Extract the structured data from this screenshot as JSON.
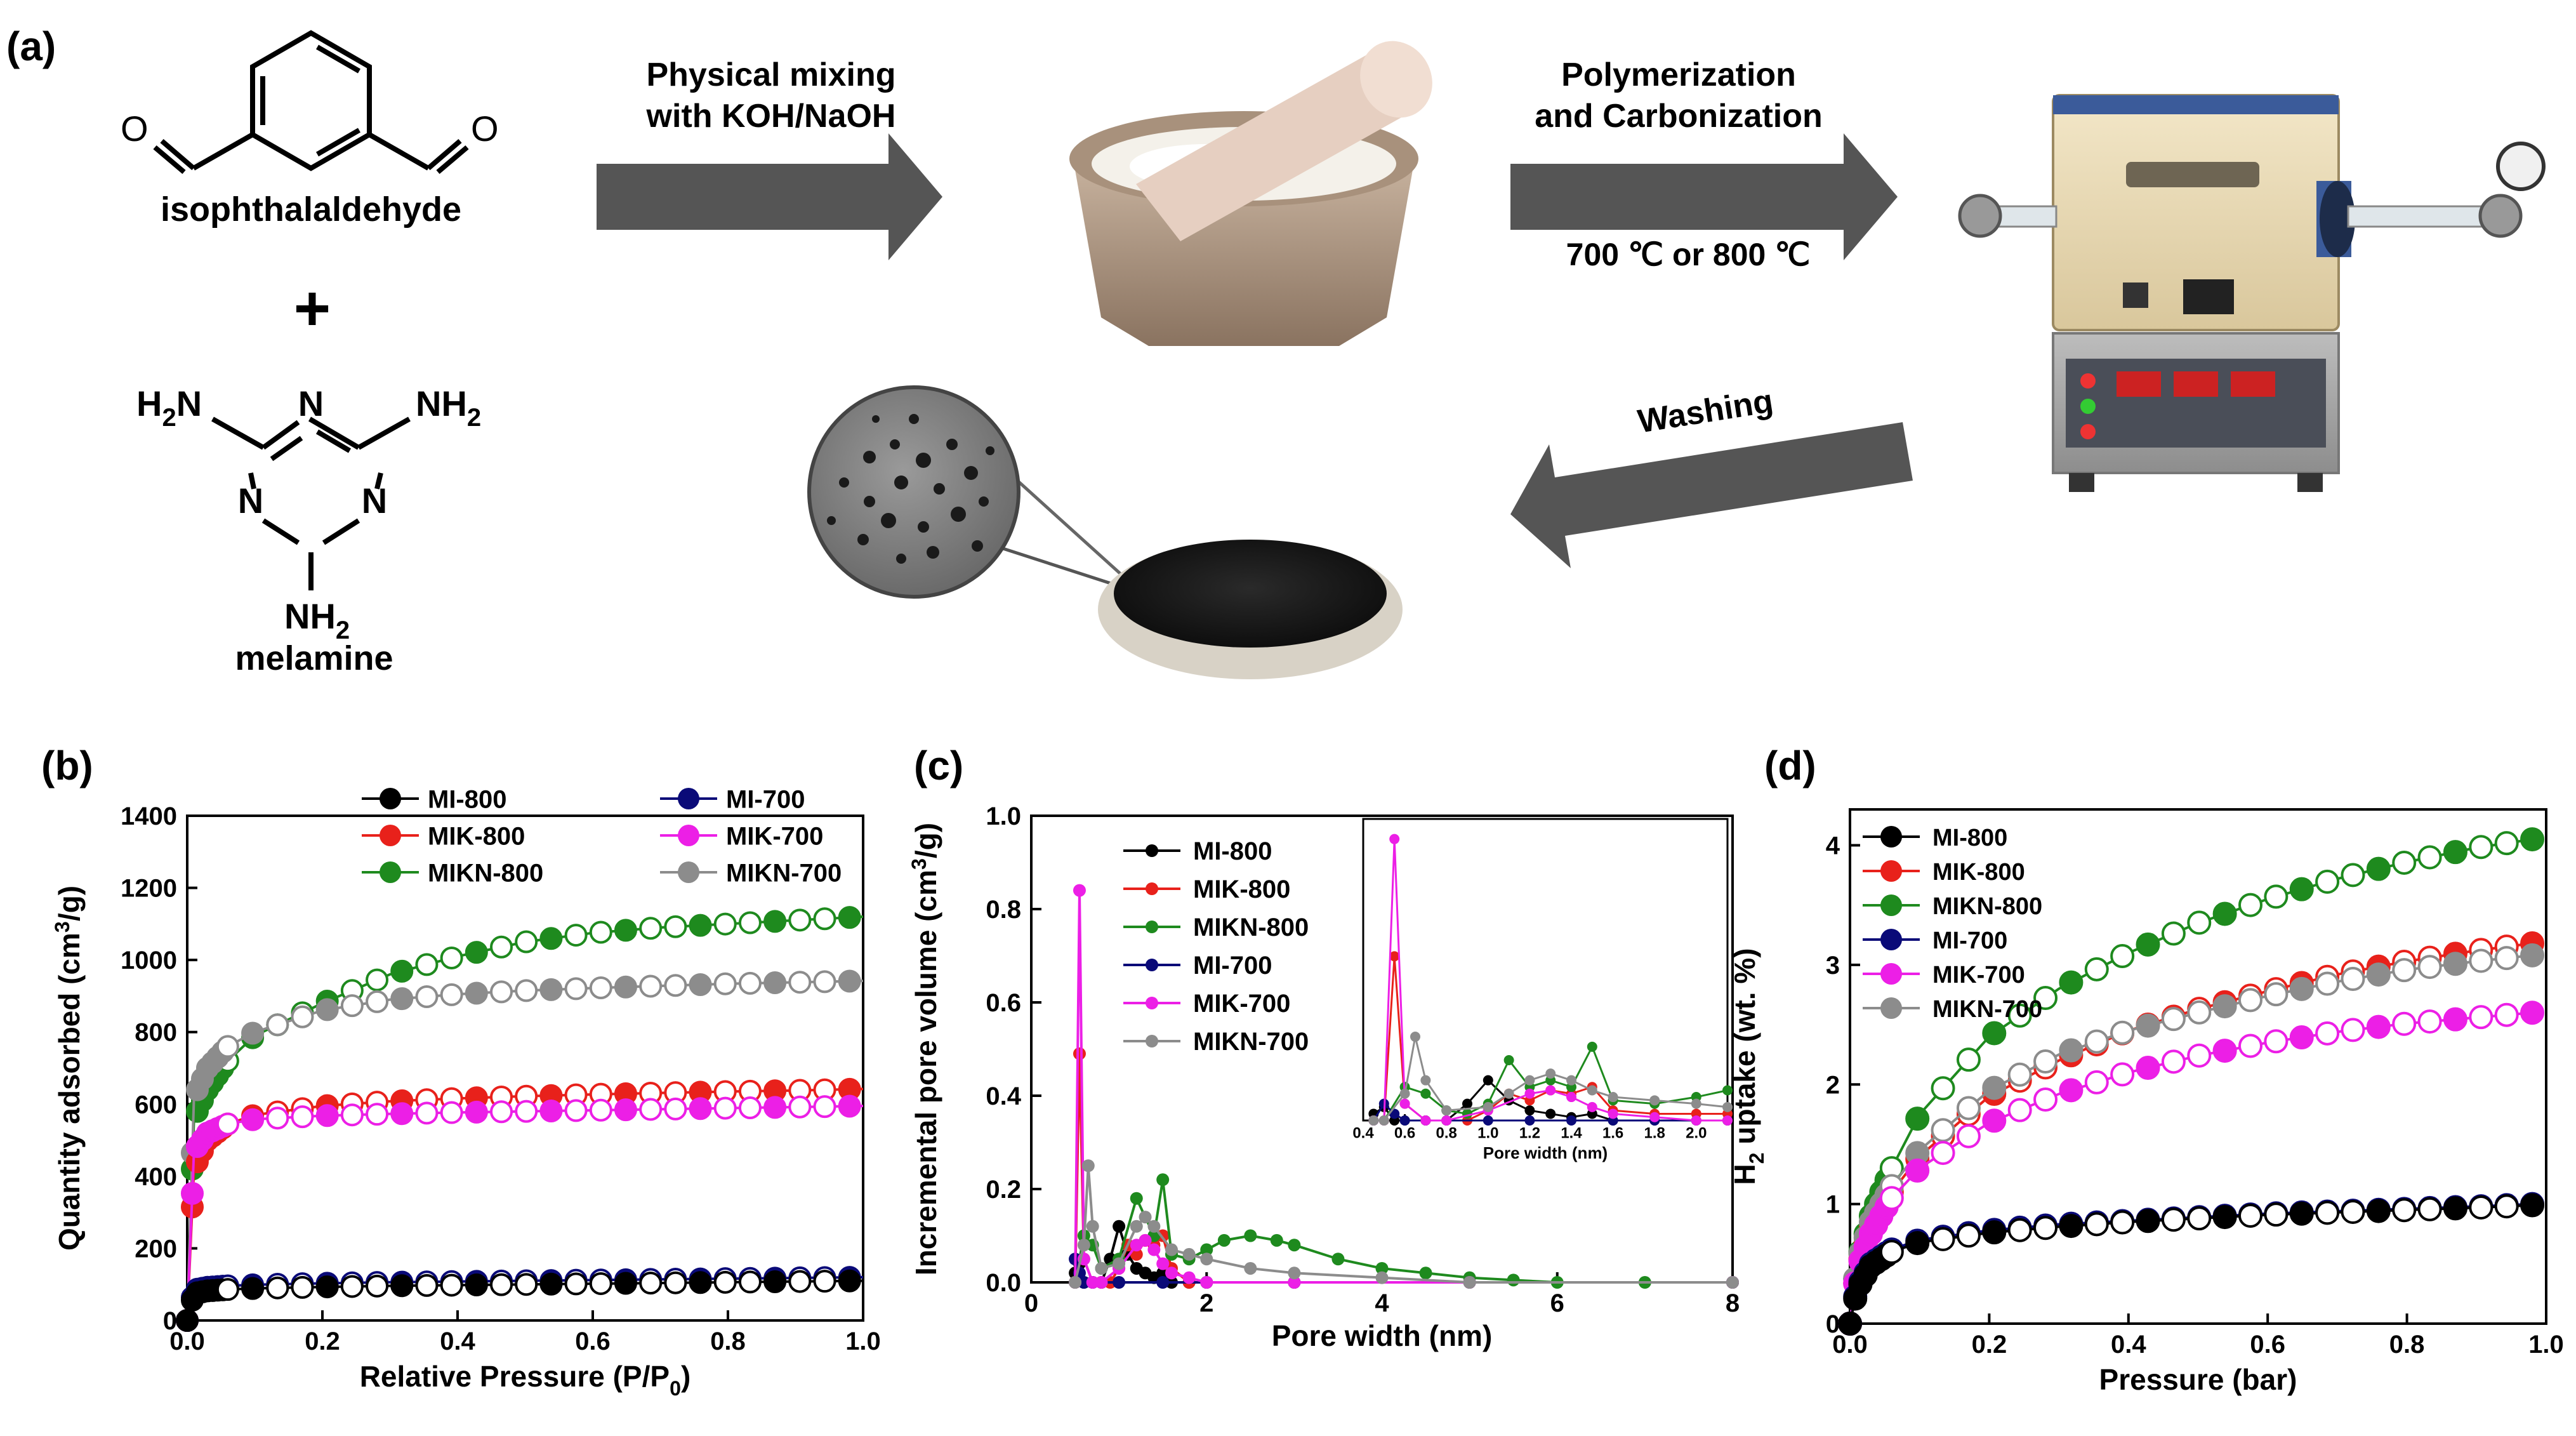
{
  "panel_a": {
    "label": "(a)",
    "molecule1_name": "isophthalaldehyde",
    "atom_o": "O",
    "plus": "+",
    "molecule2_name": "melamine",
    "h2n": "H",
    "h2n_sub": "2",
    "h2n_n": "N",
    "nh2": "NH",
    "nh2_sub": "2",
    "ring_n": "N",
    "arrow1_line1": "Physical mixing",
    "arrow1_line2": "with KOH/NaOH",
    "arrow2_line1": "Polymerization",
    "arrow2_line2": "and Carbonization",
    "arrow2_temp": "700 ℃ or 800 ℃",
    "arrow3_label": "Washing"
  },
  "panel_b": {
    "label": "(b)",
    "legend": [
      "MI-800",
      "MIK-800",
      "MIKN-800",
      "MI-700",
      "MIK-700",
      "MIKN-700"
    ]
  },
  "panel_c": {
    "label": "(c)",
    "legend": [
      "MI-800",
      "MIK-800",
      "MIKN-800",
      "MI-700",
      "MIK-700",
      "MIKN-700"
    ]
  },
  "panel_d": {
    "label": "(d)",
    "legend": [
      "MI-800",
      "MIK-800",
      "MIKN-800",
      "MI-700",
      "MIK-700",
      "MIKN-700"
    ]
  },
  "colors": {
    "MI-800": "#000000",
    "MIK-800": "#e8211b",
    "MIKN-800": "#1e8a1e",
    "MI-700": "#0a0a78",
    "MIK-700": "#ec1fe6",
    "MIKN-700": "#8c8c8c",
    "arrow": "#555555"
  },
  "chart_data": [
    {
      "type": "scatter",
      "panel": "b",
      "title": "",
      "xlabel": "Relative Pressure (P/P0)",
      "ylabel": "Quantity adsorbed (cm3/g)",
      "xlim": [
        0.0,
        1.0
      ],
      "ylim": [
        0,
        1400
      ],
      "xticks": [
        "0.0",
        "0.2",
        "0.4",
        "0.6",
        "0.8",
        "1.0"
      ],
      "yticks": [
        "0",
        "200",
        "400",
        "600",
        "800",
        "1000",
        "1200",
        "1400"
      ],
      "legend_position": "top-right",
      "series": [
        {
          "name": "MIKN-800",
          "x": [
            0.0,
            0.01,
            0.03,
            0.06,
            0.1,
            0.2,
            0.3,
            0.4,
            0.5,
            0.6,
            0.7,
            0.8,
            0.9,
            1.0
          ],
          "values": [
            0,
            560,
            640,
            720,
            790,
            880,
            960,
            1010,
            1050,
            1075,
            1090,
            1100,
            1110,
            1120
          ]
        },
        {
          "name": "MIKN-700",
          "x": [
            0.0,
            0.01,
            0.03,
            0.06,
            0.1,
            0.2,
            0.3,
            0.4,
            0.5,
            0.6,
            0.7,
            0.8,
            0.9,
            1.0
          ],
          "values": [
            0,
            620,
            700,
            760,
            800,
            860,
            890,
            905,
            915,
            922,
            928,
            934,
            938,
            942
          ]
        },
        {
          "name": "MIK-800",
          "x": [
            0.0,
            0.01,
            0.03,
            0.06,
            0.1,
            0.2,
            0.3,
            0.4,
            0.5,
            0.6,
            0.7,
            0.8,
            0.9,
            1.0
          ],
          "values": [
            0,
            420,
            500,
            545,
            570,
            595,
            608,
            616,
            622,
            627,
            631,
            635,
            638,
            642
          ]
        },
        {
          "name": "MIK-700",
          "x": [
            0.0,
            0.01,
            0.03,
            0.06,
            0.1,
            0.2,
            0.3,
            0.4,
            0.5,
            0.6,
            0.7,
            0.8,
            0.9,
            1.0
          ],
          "values": [
            0,
            470,
            520,
            545,
            558,
            568,
            573,
            577,
            580,
            583,
            586,
            589,
            592,
            595
          ]
        },
        {
          "name": "MI-700",
          "x": [
            0.0,
            0.01,
            0.03,
            0.06,
            0.1,
            0.2,
            0.3,
            0.4,
            0.5,
            0.6,
            0.7,
            0.8,
            0.9,
            1.0
          ],
          "values": [
            0,
            85,
            92,
            96,
            99,
            103,
            106,
            108,
            110,
            112,
            114,
            116,
            118,
            120
          ]
        },
        {
          "name": "MI-800",
          "x": [
            0.0,
            0.01,
            0.03,
            0.06,
            0.1,
            0.2,
            0.3,
            0.4,
            0.5,
            0.6,
            0.7,
            0.8,
            0.9,
            1.0
          ],
          "values": [
            0,
            75,
            82,
            86,
            89,
            93,
            96,
            98,
            100,
            102,
            104,
            106,
            108,
            110
          ]
        }
      ]
    },
    {
      "type": "line",
      "panel": "c",
      "title": "",
      "xlabel": "Pore width (nm)",
      "ylabel": "Incremental pore volume (cm3/g)",
      "xlim": [
        0,
        8
      ],
      "ylim": [
        0.0,
        1.0
      ],
      "xticks": [
        "0",
        "2",
        "4",
        "6",
        "8"
      ],
      "yticks": [
        "0.0",
        "0.2",
        "0.4",
        "0.6",
        "0.8",
        "1.0"
      ],
      "legend_position": "top-left",
      "series": [
        {
          "name": "MI-800",
          "x": [
            0.5,
            0.55,
            0.6,
            0.7,
            0.8,
            0.9,
            1.0,
            1.1,
            1.2,
            1.3,
            1.4,
            1.5,
            1.6,
            1.8,
            2.0,
            3.0,
            5.0,
            8.0
          ],
          "values": [
            0.02,
            0.04,
            0.0,
            0.0,
            0.0,
            0.05,
            0.12,
            0.06,
            0.03,
            0.02,
            0.01,
            0.02,
            0.0,
            0.0,
            0.0,
            0.0,
            0.0,
            0.0
          ]
        },
        {
          "name": "MIK-800",
          "x": [
            0.5,
            0.55,
            0.6,
            0.7,
            0.8,
            0.9,
            1.0,
            1.1,
            1.2,
            1.3,
            1.4,
            1.5,
            1.6,
            1.8,
            2.0,
            3.0,
            5.0,
            8.0
          ],
          "values": [
            0.0,
            0.49,
            0.05,
            0.0,
            0.0,
            0.0,
            0.03,
            0.08,
            0.06,
            0.09,
            0.08,
            0.1,
            0.03,
            0.0,
            0.0,
            0.0,
            0.0,
            0.0
          ]
        },
        {
          "name": "MIKN-800",
          "x": [
            0.5,
            0.6,
            0.7,
            0.8,
            1.0,
            1.2,
            1.4,
            1.5,
            1.6,
            1.8,
            2.0,
            2.2,
            2.5,
            2.8,
            3.0,
            3.5,
            4.0,
            4.5,
            5.0,
            5.5,
            6.0,
            7.0,
            8.0
          ],
          "values": [
            0.0,
            0.1,
            0.08,
            0.03,
            0.05,
            0.18,
            0.1,
            0.22,
            0.06,
            0.05,
            0.07,
            0.09,
            0.1,
            0.09,
            0.08,
            0.05,
            0.03,
            0.02,
            0.01,
            0.005,
            0.0,
            0.0,
            0.0
          ]
        },
        {
          "name": "MI-700",
          "x": [
            0.5,
            0.55,
            0.6,
            0.7,
            1.0,
            1.5,
            2.0,
            3.0,
            5.0,
            8.0
          ],
          "values": [
            0.05,
            0.02,
            0.0,
            0.0,
            0.0,
            0.0,
            0.0,
            0.0,
            0.0,
            0.0
          ]
        },
        {
          "name": "MIK-700",
          "x": [
            0.5,
            0.55,
            0.6,
            0.7,
            0.8,
            1.0,
            1.2,
            1.3,
            1.4,
            1.5,
            1.6,
            1.8,
            2.0,
            3.0,
            5.0,
            8.0
          ],
          "values": [
            0.0,
            0.84,
            0.05,
            0.0,
            0.0,
            0.03,
            0.08,
            0.09,
            0.07,
            0.04,
            0.02,
            0.01,
            0.0,
            0.0,
            0.0,
            0.0
          ]
        },
        {
          "name": "MIKN-700",
          "x": [
            0.5,
            0.6,
            0.65,
            0.7,
            0.8,
            1.0,
            1.2,
            1.3,
            1.4,
            1.6,
            1.8,
            2.0,
            2.5,
            3.0,
            4.0,
            5.0,
            8.0
          ],
          "values": [
            0.0,
            0.08,
            0.25,
            0.12,
            0.03,
            0.04,
            0.12,
            0.14,
            0.12,
            0.07,
            0.06,
            0.05,
            0.03,
            0.02,
            0.01,
            0.0,
            0.0
          ]
        }
      ]
    },
    {
      "type": "line",
      "panel": "c-inset",
      "title": "",
      "xlabel": "Pore width (nm)",
      "ylabel": "",
      "xlim": [
        0.4,
        2.15
      ],
      "ylim": [
        0.0,
        0.9
      ],
      "xticks": [
        "0.4",
        "0.6",
        "0.8",
        "1.0",
        "1.2",
        "1.4",
        "1.6",
        "1.8",
        "2.0"
      ],
      "series": [
        {
          "name": "MI-800",
          "x": [
            0.45,
            0.5,
            0.55,
            0.6,
            0.7,
            0.8,
            0.9,
            1.0,
            1.1,
            1.2,
            1.3,
            1.4,
            1.5,
            1.6,
            1.8,
            2.0,
            2.15
          ],
          "values": [
            0.02,
            0.04,
            0.0,
            0.0,
            0.0,
            0.0,
            0.05,
            0.12,
            0.06,
            0.03,
            0.02,
            0.01,
            0.02,
            0.0,
            0.0,
            0.0,
            0.0
          ]
        },
        {
          "name": "MIK-800",
          "x": [
            0.45,
            0.5,
            0.55,
            0.6,
            0.7,
            0.8,
            0.9,
            1.0,
            1.1,
            1.2,
            1.3,
            1.4,
            1.5,
            1.6,
            1.8,
            2.0,
            2.15
          ],
          "values": [
            0.0,
            0.0,
            0.49,
            0.05,
            0.0,
            0.0,
            0.0,
            0.03,
            0.08,
            0.06,
            0.09,
            0.08,
            0.1,
            0.03,
            0.02,
            0.02,
            0.02
          ]
        },
        {
          "name": "MIKN-800",
          "x": [
            0.45,
            0.5,
            0.6,
            0.7,
            0.8,
            0.9,
            1.0,
            1.1,
            1.2,
            1.3,
            1.4,
            1.5,
            1.6,
            1.8,
            2.0,
            2.15
          ],
          "values": [
            0.0,
            0.0,
            0.1,
            0.08,
            0.03,
            0.02,
            0.05,
            0.18,
            0.1,
            0.12,
            0.1,
            0.22,
            0.06,
            0.05,
            0.07,
            0.09
          ]
        },
        {
          "name": "MI-700",
          "x": [
            0.45,
            0.5,
            0.55,
            0.6,
            0.7,
            0.8,
            1.0,
            1.2,
            1.4,
            1.6,
            1.8,
            2.0,
            2.15
          ],
          "values": [
            0.0,
            0.05,
            0.02,
            0.0,
            0.0,
            0.0,
            0.0,
            0.0,
            0.0,
            0.0,
            0.0,
            0.0,
            0.0
          ]
        },
        {
          "name": "MIK-700",
          "x": [
            0.45,
            0.5,
            0.55,
            0.6,
            0.7,
            0.8,
            1.0,
            1.2,
            1.3,
            1.4,
            1.5,
            1.6,
            1.8,
            2.0,
            2.15
          ],
          "values": [
            0.0,
            0.0,
            0.84,
            0.05,
            0.0,
            0.0,
            0.03,
            0.08,
            0.09,
            0.07,
            0.04,
            0.02,
            0.01,
            0.0,
            0.0
          ]
        },
        {
          "name": "MIKN-700",
          "x": [
            0.45,
            0.5,
            0.6,
            0.65,
            0.7,
            0.8,
            1.0,
            1.1,
            1.2,
            1.3,
            1.4,
            1.5,
            1.6,
            1.8,
            2.0,
            2.15
          ],
          "values": [
            0.0,
            0.0,
            0.08,
            0.25,
            0.12,
            0.03,
            0.04,
            0.08,
            0.12,
            0.14,
            0.12,
            0.09,
            0.07,
            0.06,
            0.05,
            0.04
          ]
        }
      ]
    },
    {
      "type": "scatter",
      "panel": "d",
      "title": "",
      "xlabel": "Pressure (bar)",
      "ylabel": "H2 uptake (wt. %)",
      "xlim": [
        0.0,
        1.0
      ],
      "ylim": [
        0,
        4.3
      ],
      "xticks": [
        "0.0",
        "0.2",
        "0.4",
        "0.6",
        "0.8",
        "1.0"
      ],
      "yticks": [
        "0",
        "1",
        "2",
        "3",
        "4"
      ],
      "legend_position": "top-left",
      "series": [
        {
          "name": "MIKN-800",
          "x": [
            0.0,
            0.01,
            0.03,
            0.06,
            0.1,
            0.2,
            0.3,
            0.4,
            0.5,
            0.6,
            0.7,
            0.8,
            0.9,
            0.98
          ],
          "values": [
            0,
            0.5,
            0.9,
            1.3,
            1.75,
            2.4,
            2.8,
            3.1,
            3.35,
            3.55,
            3.72,
            3.86,
            3.98,
            4.05
          ]
        },
        {
          "name": "MIK-800",
          "x": [
            0.0,
            0.01,
            0.03,
            0.06,
            0.1,
            0.2,
            0.3,
            0.4,
            0.5,
            0.6,
            0.7,
            0.8,
            0.9,
            0.98
          ],
          "values": [
            0,
            0.45,
            0.8,
            1.1,
            1.4,
            1.9,
            2.2,
            2.45,
            2.63,
            2.78,
            2.92,
            3.03,
            3.12,
            3.18
          ]
        },
        {
          "name": "MIKN-700",
          "x": [
            0.0,
            0.01,
            0.03,
            0.06,
            0.1,
            0.2,
            0.3,
            0.4,
            0.5,
            0.6,
            0.7,
            0.8,
            0.9,
            0.98
          ],
          "values": [
            0,
            0.5,
            0.85,
            1.15,
            1.45,
            1.95,
            2.25,
            2.45,
            2.6,
            2.74,
            2.86,
            2.96,
            3.03,
            3.08
          ]
        },
        {
          "name": "MIK-700",
          "x": [
            0.0,
            0.01,
            0.03,
            0.06,
            0.1,
            0.2,
            0.3,
            0.4,
            0.5,
            0.6,
            0.7,
            0.8,
            0.9,
            0.98
          ],
          "values": [
            0,
            0.45,
            0.75,
            1.05,
            1.3,
            1.68,
            1.92,
            2.1,
            2.24,
            2.35,
            2.44,
            2.51,
            2.56,
            2.6
          ]
        },
        {
          "name": "MI-700",
          "x": [
            0.0,
            0.01,
            0.03,
            0.06,
            0.1,
            0.2,
            0.3,
            0.4,
            0.5,
            0.6,
            0.7,
            0.8,
            0.9,
            0.98
          ],
          "values": [
            0,
            0.3,
            0.5,
            0.62,
            0.7,
            0.78,
            0.83,
            0.86,
            0.89,
            0.92,
            0.94,
            0.96,
            0.98,
            1.0
          ]
        },
        {
          "name": "MI-800",
          "x": [
            0.0,
            0.01,
            0.03,
            0.06,
            0.1,
            0.2,
            0.3,
            0.4,
            0.5,
            0.6,
            0.7,
            0.8,
            0.9,
            0.98
          ],
          "values": [
            0,
            0.28,
            0.48,
            0.6,
            0.68,
            0.76,
            0.81,
            0.85,
            0.88,
            0.91,
            0.93,
            0.95,
            0.97,
            0.99
          ]
        }
      ]
    }
  ]
}
